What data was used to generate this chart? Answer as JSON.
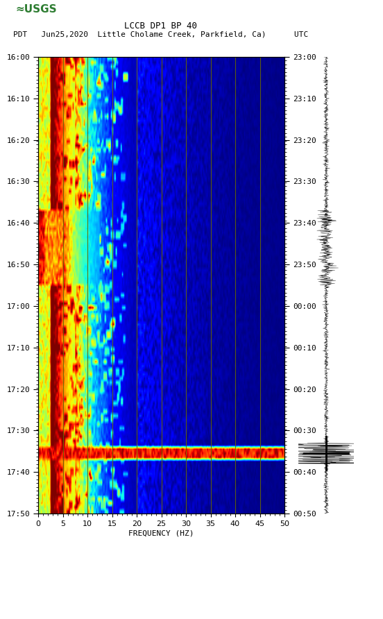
{
  "title_line1": "LCCB DP1 BP 40",
  "title_line2": "PDT   Jun25,2020  Little Cholame Creek, Parkfield, Ca)      UTC",
  "left_time_labels": [
    "16:00",
    "16:10",
    "16:20",
    "16:30",
    "16:40",
    "16:50",
    "17:00",
    "17:10",
    "17:20",
    "17:30",
    "17:40",
    "17:50"
  ],
  "right_time_labels": [
    "23:00",
    "23:10",
    "23:20",
    "23:30",
    "23:40",
    "23:50",
    "00:00",
    "00:10",
    "00:20",
    "00:30",
    "00:40",
    "00:50"
  ],
  "freq_min": 0,
  "freq_max": 50,
  "freq_ticks": [
    0,
    5,
    10,
    15,
    20,
    25,
    30,
    35,
    40,
    45,
    50
  ],
  "xlabel": "FREQUENCY (HZ)",
  "background_color": "#ffffff",
  "vertical_lines_freq": [
    5,
    10,
    15,
    20,
    25,
    30,
    35,
    40,
    45
  ],
  "vertical_line_color": "#666600",
  "seed": 42
}
